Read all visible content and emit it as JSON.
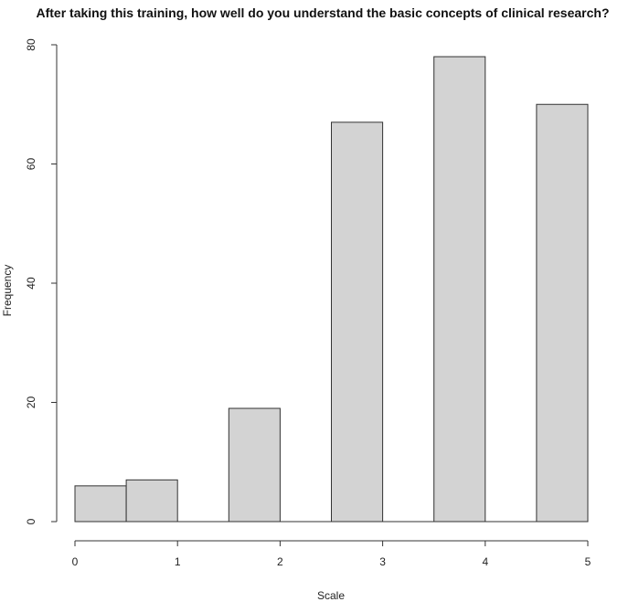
{
  "chart_data": {
    "type": "bar",
    "title": "After taking this training, how well do you understand the basic concepts of clinical research?",
    "xlabel": "Scale",
    "ylabel": "Frequency",
    "bins": [
      {
        "start": 0.0,
        "end": 0.5,
        "value": 6
      },
      {
        "start": 0.5,
        "end": 1.0,
        "value": 7
      },
      {
        "start": 1.0,
        "end": 1.5,
        "value": 0
      },
      {
        "start": 1.5,
        "end": 2.0,
        "value": 19
      },
      {
        "start": 2.0,
        "end": 2.5,
        "value": 0
      },
      {
        "start": 2.5,
        "end": 3.0,
        "value": 67
      },
      {
        "start": 3.0,
        "end": 3.5,
        "value": 0
      },
      {
        "start": 3.5,
        "end": 4.0,
        "value": 78
      },
      {
        "start": 4.0,
        "end": 4.5,
        "value": 0
      },
      {
        "start": 4.5,
        "end": 5.0,
        "value": 70
      }
    ],
    "xlim": [
      0,
      5
    ],
    "ylim": [
      0,
      80
    ],
    "xticks": [
      "0",
      "1",
      "2",
      "3",
      "4",
      "5"
    ],
    "yticks": [
      "0",
      "20",
      "40",
      "60",
      "80"
    ],
    "grid": false,
    "bar_color": "#d3d3d3",
    "border_color": "#333333"
  }
}
